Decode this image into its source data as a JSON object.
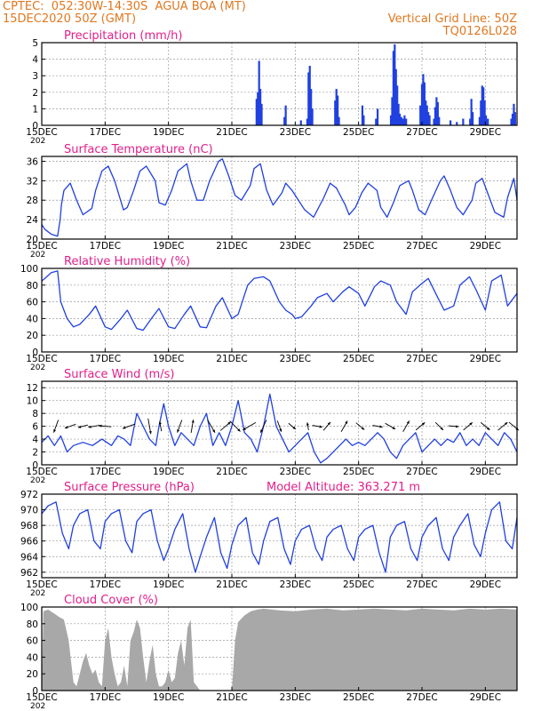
{
  "header": {
    "line1_left": "CPTEC:  052:30W-14:30S  AGUA BOA (MT)",
    "line2_left": "15DEC2020 50Z (GMT)",
    "line2_right": "Vertical Grid Line: 50Z",
    "line3_right": "TQ0126L028"
  },
  "colors": {
    "header": "#e07820",
    "title": "#e0208a",
    "series": "#2040e0",
    "cloud": "#a8a8a8",
    "arrow": "#000000"
  },
  "x_axis": {
    "tick_labels": [
      "15DEC",
      "17DEC",
      "19DEC",
      "21DEC",
      "23DEC",
      "25DEC",
      "27DEC",
      "29DEC"
    ],
    "tick_days": [
      0,
      2,
      4,
      6,
      8,
      10,
      12,
      14
    ],
    "year_label": "202",
    "range_days": [
      0,
      15
    ]
  },
  "chart_data": [
    {
      "id": "precip",
      "type": "bar",
      "title": "Precipitation (mm/h)",
      "ylim": [
        0,
        5
      ],
      "y_ticks": [
        0,
        1,
        2,
        3,
        4,
        5
      ],
      "x_unit": "days since 15DEC 00Z",
      "bars": [
        [
          6.78,
          1.6
        ],
        [
          6.82,
          2.0
        ],
        [
          6.86,
          3.9
        ],
        [
          6.9,
          2.2
        ],
        [
          6.94,
          1.3
        ],
        [
          7.66,
          0.5
        ],
        [
          7.7,
          1.2
        ],
        [
          8.18,
          0.3
        ],
        [
          8.38,
          0.4
        ],
        [
          8.42,
          3.2
        ],
        [
          8.46,
          3.6
        ],
        [
          8.5,
          2.2
        ],
        [
          8.54,
          1.0
        ],
        [
          9.26,
          1.5
        ],
        [
          9.3,
          2.2
        ],
        [
          9.34,
          1.8
        ],
        [
          9.38,
          0.5
        ],
        [
          10.12,
          1.2
        ],
        [
          10.16,
          0.6
        ],
        [
          10.55,
          0.4
        ],
        [
          10.6,
          1.0
        ],
        [
          11.02,
          0.6
        ],
        [
          11.06,
          1.7
        ],
        [
          11.1,
          4.5
        ],
        [
          11.14,
          4.9
        ],
        [
          11.18,
          3.4
        ],
        [
          11.22,
          2.4
        ],
        [
          11.26,
          1.3
        ],
        [
          11.3,
          0.7
        ],
        [
          11.35,
          0.5
        ],
        [
          11.4,
          0.4
        ],
        [
          11.45,
          0.6
        ],
        [
          11.5,
          0.4
        ],
        [
          11.95,
          1.2
        ],
        [
          12.0,
          2.5
        ],
        [
          12.04,
          3.1
        ],
        [
          12.08,
          2.6
        ],
        [
          12.12,
          1.5
        ],
        [
          12.16,
          1.2
        ],
        [
          12.2,
          0.8
        ],
        [
          12.24,
          0.6
        ],
        [
          12.38,
          0.4
        ],
        [
          12.42,
          1.1
        ],
        [
          12.46,
          1.7
        ],
        [
          12.5,
          1.4
        ],
        [
          12.54,
          0.5
        ],
        [
          12.9,
          0.3
        ],
        [
          13.1,
          0.2
        ],
        [
          13.3,
          0.4
        ],
        [
          13.52,
          0.4
        ],
        [
          13.56,
          1.6
        ],
        [
          13.6,
          0.8
        ],
        [
          13.82,
          0.5
        ],
        [
          13.86,
          1.5
        ],
        [
          13.9,
          2.4
        ],
        [
          13.94,
          2.3
        ],
        [
          13.98,
          1.5
        ],
        [
          14.02,
          0.6
        ],
        [
          14.08,
          0.4
        ],
        [
          14.82,
          0.4
        ],
        [
          14.86,
          0.7
        ],
        [
          14.9,
          1.3
        ],
        [
          14.94,
          0.8
        ]
      ]
    },
    {
      "id": "temp",
      "type": "line",
      "title": "Surface Temperature (nC)",
      "ylim": [
        20,
        37
      ],
      "y_ticks": [
        20,
        24,
        28,
        32,
        36
      ],
      "x_unit": "days since 15DEC 00Z",
      "x": [
        0,
        0.1,
        0.3,
        0.5,
        0.58,
        0.62,
        0.7,
        0.9,
        1.1,
        1.3,
        1.58,
        1.7,
        1.9,
        2.1,
        2.3,
        2.58,
        2.7,
        2.9,
        3.1,
        3.3,
        3.58,
        3.7,
        3.9,
        4.1,
        4.3,
        4.58,
        4.7,
        4.9,
        5.1,
        5.3,
        5.58,
        5.7,
        5.9,
        6.1,
        6.3,
        6.58,
        6.7,
        6.9,
        7.1,
        7.3,
        7.58,
        7.7,
        7.9,
        8.1,
        8.3,
        8.58,
        8.7,
        8.9,
        9.1,
        9.3,
        9.58,
        9.7,
        9.9,
        10.1,
        10.3,
        10.58,
        10.7,
        10.9,
        11.1,
        11.3,
        11.58,
        11.7,
        11.9,
        12.1,
        12.3,
        12.58,
        12.7,
        12.9,
        13.1,
        13.3,
        13.58,
        13.7,
        13.9,
        14.1,
        14.3,
        14.58,
        14.7,
        14.9,
        15.0
      ],
      "series": [
        {
          "values": [
            23,
            22,
            21,
            20.6,
            24,
            27,
            30,
            31.5,
            28,
            25,
            26.3,
            30,
            34,
            35,
            32,
            26,
            26.5,
            30,
            34,
            35,
            32,
            27.5,
            27,
            30,
            34,
            35.5,
            32,
            28,
            28,
            32,
            36,
            36.5,
            33,
            29,
            28,
            31,
            34.5,
            35.5,
            30,
            27,
            29.5,
            31.5,
            30,
            28,
            26,
            24.5,
            26,
            28.5,
            31.5,
            30.5,
            27,
            25,
            26.5,
            29.5,
            31.5,
            30,
            26.5,
            24.5,
            27.5,
            31,
            32,
            30,
            26,
            25,
            28,
            32,
            33,
            30,
            26.5,
            25,
            28,
            31.5,
            32.5,
            29,
            25.5,
            24.5,
            28.5,
            32.5,
            28
          ]
        }
      ]
    },
    {
      "id": "rh",
      "type": "line",
      "title": "Relative Humidity (%)",
      "ylim": [
        0,
        100
      ],
      "y_ticks": [
        0,
        20,
        40,
        60,
        80,
        100
      ],
      "x_unit": "days since 15DEC 00Z",
      "x": [
        0,
        0.1,
        0.3,
        0.5,
        0.6,
        0.8,
        1.0,
        1.2,
        1.5,
        1.7,
        2.0,
        2.2,
        2.5,
        2.7,
        3.0,
        3.2,
        3.5,
        3.7,
        4.0,
        4.2,
        4.5,
        4.7,
        5.0,
        5.2,
        5.5,
        5.7,
        6.0,
        6.2,
        6.5,
        6.7,
        7.0,
        7.2,
        7.5,
        7.7,
        7.9,
        8.0,
        8.2,
        8.5,
        8.7,
        9.0,
        9.2,
        9.5,
        9.7,
        10.0,
        10.2,
        10.5,
        10.7,
        11.0,
        11.2,
        11.5,
        11.7,
        12.0,
        12.2,
        12.5,
        12.7,
        13.0,
        13.2,
        13.5,
        13.7,
        14.0,
        14.2,
        14.5,
        14.7,
        15.0
      ],
      "series": [
        {
          "values": [
            85,
            88,
            95,
            97,
            60,
            40,
            30,
            33,
            45,
            55,
            30,
            27,
            40,
            50,
            28,
            26,
            42,
            52,
            30,
            28,
            45,
            55,
            30,
            29,
            55,
            65,
            40,
            45,
            80,
            88,
            90,
            85,
            60,
            50,
            45,
            40,
            42,
            55,
            65,
            70,
            60,
            72,
            78,
            70,
            55,
            78,
            85,
            80,
            60,
            45,
            72,
            82,
            88,
            65,
            50,
            55,
            80,
            90,
            75,
            50,
            85,
            92,
            55,
            70
          ]
        }
      ]
    },
    {
      "id": "wind",
      "type": "line",
      "title": "Surface Wind (m/s)",
      "ylim": [
        0,
        13
      ],
      "y_ticks": [
        0,
        2,
        4,
        6,
        8,
        10,
        12
      ],
      "x_unit": "days since 15DEC 00Z",
      "x": [
        0,
        0.2,
        0.4,
        0.6,
        0.8,
        1.0,
        1.3,
        1.6,
        1.9,
        2.2,
        2.4,
        2.6,
        2.8,
        3.0,
        3.2,
        3.4,
        3.6,
        3.7,
        3.85,
        4.0,
        4.2,
        4.4,
        4.6,
        4.8,
        5.0,
        5.2,
        5.4,
        5.6,
        5.8,
        6.0,
        6.2,
        6.4,
        6.6,
        6.8,
        7.0,
        7.2,
        7.4,
        7.6,
        7.8,
        8.0,
        8.2,
        8.4,
        8.6,
        8.8,
        9.0,
        9.2,
        9.4,
        9.6,
        9.8,
        10.0,
        10.2,
        10.4,
        10.6,
        10.8,
        11.0,
        11.2,
        11.4,
        11.6,
        11.8,
        12.0,
        12.2,
        12.4,
        12.6,
        12.8,
        13.0,
        13.2,
        13.4,
        13.6,
        13.8,
        14.0,
        14.2,
        14.4,
        14.6,
        14.8,
        15.0
      ],
      "series": [
        {
          "values": [
            3.5,
            4.5,
            3,
            4.5,
            2,
            3,
            3.5,
            3,
            4,
            3,
            4.5,
            4,
            3,
            8,
            6,
            4,
            3,
            6,
            9.5,
            6,
            3,
            5,
            4,
            3,
            6,
            8,
            3,
            5,
            3,
            6,
            10,
            5,
            4,
            2,
            6,
            11,
            6,
            4,
            2,
            3,
            4,
            5,
            2,
            0.3,
            1,
            2,
            3,
            4,
            3,
            3.5,
            3,
            4,
            5,
            4,
            2,
            1,
            3,
            4,
            5,
            2,
            3,
            4,
            3,
            4,
            3.5,
            5,
            3,
            4,
            3,
            5,
            4,
            3,
            5,
            4,
            2
          ]
        }
      ],
      "arrows": [
        [
          0.45,
          250,
          1.0
        ],
        [
          0.9,
          200,
          0.8
        ],
        [
          1.3,
          195,
          0.6
        ],
        [
          1.65,
          190,
          0.8
        ],
        [
          2.0,
          175,
          0.9
        ],
        [
          2.75,
          200,
          1.0
        ],
        [
          3.4,
          280,
          1.3
        ],
        [
          3.75,
          100,
          0.6
        ],
        [
          4.35,
          250,
          1.0
        ],
        [
          4.75,
          80,
          1.0
        ],
        [
          5.35,
          300,
          1.2
        ],
        [
          5.8,
          40,
          1.0
        ],
        [
          6.1,
          315,
          1.2
        ],
        [
          6.55,
          210,
          1.2
        ],
        [
          7.0,
          245,
          1.1
        ],
        [
          7.5,
          290,
          0.8
        ],
        [
          7.9,
          320,
          0.5
        ],
        [
          8.4,
          100,
          0.3
        ],
        [
          8.7,
          350,
          0.6
        ],
        [
          9.0,
          50,
          0.7
        ],
        [
          9.55,
          60,
          0.9
        ],
        [
          10.05,
          320,
          0.7
        ],
        [
          10.6,
          350,
          0.6
        ],
        [
          11.0,
          330,
          0.8
        ],
        [
          11.5,
          60,
          0.9
        ],
        [
          11.95,
          40,
          0.8
        ],
        [
          12.55,
          315,
          0.7
        ],
        [
          13.0,
          355,
          0.6
        ],
        [
          13.45,
          40,
          0.8
        ],
        [
          14.0,
          320,
          0.8
        ],
        [
          14.55,
          40,
          0.9
        ],
        [
          14.9,
          320,
          0.9
        ]
      ]
    },
    {
      "id": "pressure",
      "type": "line",
      "title": "Surface Pressure (hPa)",
      "annotation": "Model Altitude: 363.271 m",
      "ylim": [
        961.3,
        972
      ],
      "y_ticks": [
        962,
        964,
        966,
        968,
        970,
        972
      ],
      "x_unit": "days since 15DEC 00Z",
      "x": [
        0,
        0.2,
        0.45,
        0.65,
        0.85,
        1.0,
        1.2,
        1.45,
        1.65,
        1.85,
        2.0,
        2.2,
        2.45,
        2.65,
        2.85,
        3.0,
        3.2,
        3.45,
        3.65,
        3.85,
        4.0,
        4.2,
        4.45,
        4.65,
        4.85,
        5.0,
        5.2,
        5.45,
        5.65,
        5.85,
        6.0,
        6.2,
        6.45,
        6.65,
        6.85,
        7.0,
        7.2,
        7.45,
        7.65,
        7.85,
        8.0,
        8.2,
        8.45,
        8.65,
        8.85,
        9.0,
        9.2,
        9.45,
        9.65,
        9.85,
        10.0,
        10.2,
        10.45,
        10.65,
        10.85,
        11.0,
        11.2,
        11.45,
        11.65,
        11.85,
        12.0,
        12.2,
        12.45,
        12.65,
        12.85,
        13.0,
        13.2,
        13.45,
        13.65,
        13.85,
        14.0,
        14.2,
        14.45,
        14.65,
        14.85,
        15.0
      ],
      "series": [
        {
          "values": [
            969.5,
            970.5,
            971,
            967,
            965,
            968,
            969.5,
            970,
            966,
            965,
            968.5,
            969.5,
            970,
            966,
            964.5,
            968.5,
            969.5,
            970,
            966,
            963.5,
            965,
            967.5,
            969.5,
            965,
            962,
            964,
            966.5,
            969,
            964.5,
            962.5,
            965.5,
            968,
            969,
            964.5,
            963,
            966,
            968.5,
            969,
            965,
            963,
            966,
            967.5,
            968,
            965,
            963.5,
            966.5,
            967.5,
            968,
            965,
            963.5,
            966.5,
            967.5,
            968,
            964.5,
            962,
            966.5,
            968,
            968.5,
            965,
            963.5,
            966.5,
            968,
            969,
            965,
            963.5,
            966.5,
            968,
            969.5,
            965.5,
            964,
            967,
            970,
            971,
            966,
            965,
            969
          ]
        }
      ]
    },
    {
      "id": "cloud",
      "type": "area",
      "title": "Cloud Cover (%)",
      "ylim": [
        0,
        100
      ],
      "y_ticks": [
        0,
        20,
        40,
        60,
        80,
        100
      ],
      "x_unit": "days since 15DEC 00Z",
      "x": [
        0,
        0.05,
        0.2,
        0.4,
        0.55,
        0.7,
        0.85,
        1.0,
        1.1,
        1.2,
        1.3,
        1.4,
        1.5,
        1.6,
        1.7,
        1.8,
        1.9,
        2.0,
        2.1,
        2.2,
        2.3,
        2.4,
        2.5,
        2.6,
        2.7,
        2.8,
        2.9,
        3.0,
        3.1,
        3.2,
        3.3,
        3.4,
        3.5,
        3.6,
        3.7,
        3.8,
        3.9,
        4.0,
        4.1,
        4.2,
        4.3,
        4.4,
        4.5,
        4.6,
        4.7,
        4.8,
        4.9,
        5.0,
        5.1,
        5.2,
        5.3,
        5.4,
        5.5,
        5.6,
        5.7,
        5.8,
        5.9,
        6.0,
        6.05,
        6.1,
        6.2,
        6.4,
        6.6,
        6.8,
        7.0,
        7.5,
        8.0,
        8.5,
        9.0,
        9.5,
        10.0,
        10.5,
        11.0,
        11.5,
        12.0,
        12.5,
        13.0,
        13.5,
        14.0,
        14.5,
        15.0
      ],
      "series": [
        {
          "values": [
            0,
            95,
            97,
            92,
            88,
            85,
            60,
            10,
            5,
            20,
            35,
            45,
            30,
            20,
            25,
            10,
            5,
            60,
            75,
            40,
            20,
            5,
            10,
            30,
            5,
            60,
            70,
            85,
            75,
            40,
            10,
            35,
            55,
            20,
            5,
            5,
            10,
            25,
            10,
            15,
            45,
            60,
            30,
            75,
            85,
            10,
            5,
            0,
            0,
            0,
            0,
            0,
            0,
            0,
            0,
            0,
            0,
            0,
            30,
            60,
            82,
            90,
            95,
            97,
            98,
            96,
            95,
            97,
            98,
            96,
            97,
            98,
            97,
            96,
            98,
            97,
            96,
            98,
            97,
            98,
            97
          ]
        }
      ]
    }
  ]
}
